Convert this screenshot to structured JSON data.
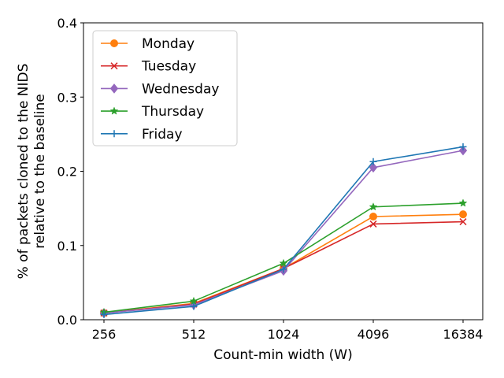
{
  "chart_data": {
    "type": "line",
    "xlabel": "Count-min width (W)",
    "ylabel_lines": [
      "% of packets cloned to the NIDS",
      "relative to the baseline"
    ],
    "categories": [
      "256",
      "512",
      "1024",
      "4096",
      "16384"
    ],
    "ylim": [
      0,
      0.4
    ],
    "yticks": [
      0.0,
      0.1,
      0.2,
      0.3,
      0.4
    ],
    "ytick_labels": [
      "0.0",
      "0.1",
      "0.2",
      "0.3",
      "0.4"
    ],
    "grid": false,
    "legend_position": "top-left",
    "series": [
      {
        "name": "Monday",
        "color": "#ff7f0e",
        "marker": "circle",
        "values": [
          0.009,
          0.022,
          0.069,
          0.139,
          0.142
        ]
      },
      {
        "name": "Tuesday",
        "color": "#d62728",
        "marker": "x",
        "values": [
          0.009,
          0.021,
          0.069,
          0.129,
          0.132
        ]
      },
      {
        "name": "Wednesday",
        "color": "#9467bd",
        "marker": "diamond",
        "values": [
          0.009,
          0.02,
          0.066,
          0.205,
          0.228
        ]
      },
      {
        "name": "Thursday",
        "color": "#2ca02c",
        "marker": "star",
        "values": [
          0.01,
          0.025,
          0.076,
          0.152,
          0.157
        ]
      },
      {
        "name": "Friday",
        "color": "#1f77b4",
        "marker": "plus",
        "values": [
          0.007,
          0.018,
          0.068,
          0.213,
          0.233
        ]
      }
    ]
  }
}
